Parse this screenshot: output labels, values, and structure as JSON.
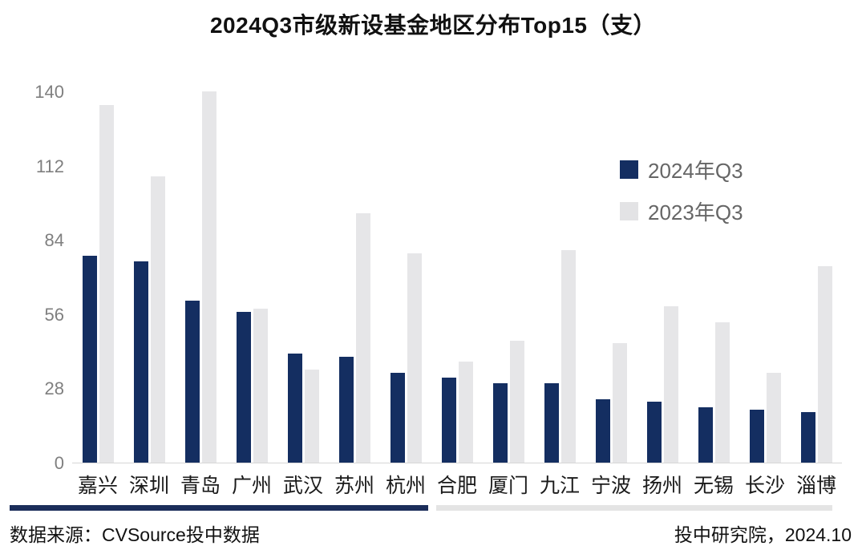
{
  "title": "2024Q3市级新设基金地区分布Top15（支）",
  "legend": {
    "items": [
      {
        "label": "2024年Q3",
        "color": "#142e61"
      },
      {
        "label": "2023年Q3",
        "color": "#e3e3e5"
      }
    ]
  },
  "footer": {
    "source": "数据来源：CVSource投中数据",
    "attribution": "投中研究院，2024.10",
    "divider_navy_color": "#1b2d5a",
    "divider_gray_color": "#e4e4e4"
  },
  "chart_data": {
    "type": "bar",
    "title": "2024Q3市级新设基金地区分布Top15（支）",
    "categories": [
      "嘉兴",
      "深圳",
      "青岛",
      "广州",
      "武汉",
      "苏州",
      "杭州",
      "合肥",
      "厦门",
      "九江",
      "宁波",
      "扬州",
      "无锡",
      "长沙",
      "淄博"
    ],
    "series": [
      {
        "name": "2024年Q3",
        "color": "#142e61",
        "values": [
          78,
          76,
          61,
          57,
          41,
          40,
          34,
          32,
          30,
          30,
          24,
          23,
          21,
          20,
          19
        ]
      },
      {
        "name": "2023年Q3",
        "color": "#e6e6e8",
        "values": [
          135,
          108,
          140,
          58,
          35,
          94,
          79,
          38,
          46,
          80,
          45,
          59,
          53,
          34,
          74
        ]
      }
    ],
    "xlabel": "",
    "ylabel": "",
    "ylim": [
      0,
      140
    ],
    "yticks": [
      0,
      28,
      56,
      84,
      112,
      140
    ],
    "grid": false,
    "legend_position": "upper-right"
  }
}
